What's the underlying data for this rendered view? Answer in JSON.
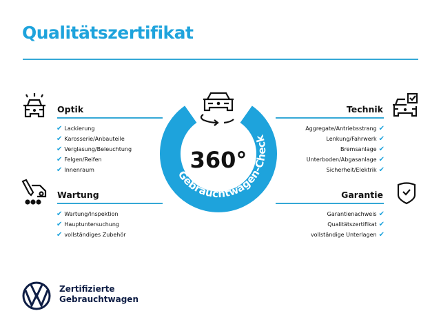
{
  "title": "Qualitätszertifikat",
  "colors": {
    "accent": "#1ea3dc",
    "brand_dark": "#0f1e45"
  },
  "center_badge": {
    "value": "360°",
    "ring_text": "Gebrauchtwagen-Check",
    "icon": "car-rotate-icon"
  },
  "sections": {
    "optik": {
      "title": "Optik",
      "icon": "car-lights-icon",
      "items": [
        "Lackierung",
        "Karosserie/Anbauteile",
        "Verglasung/Beleuchtung",
        "Felgen/Reifen",
        "Innenraum"
      ]
    },
    "wartung": {
      "title": "Wartung",
      "icon": "car-service-icon",
      "items": [
        "Wartung/Inspektion",
        "Hauptuntersuchung",
        "vollständiges Zubehör"
      ]
    },
    "technik": {
      "title": "Technik",
      "icon": "car-checklist-icon",
      "items": [
        "Aggregate/Antriebsstrang",
        "Lenkung/Fahrwerk",
        "Bremsanlage",
        "Unterboden/Abgasanlage",
        "Sicherheit/Elektrik"
      ]
    },
    "garantie": {
      "title": "Garantie",
      "icon": "shield-check-icon",
      "items": [
        "Garantienachweis",
        "Qualitätszertifikat",
        "vollständige Unterlagen"
      ]
    }
  },
  "check_glyph": "✔",
  "brand": {
    "line1": "Zertifizierte",
    "line2": "Gebrauchtwagen",
    "logo": "vw-logo"
  }
}
